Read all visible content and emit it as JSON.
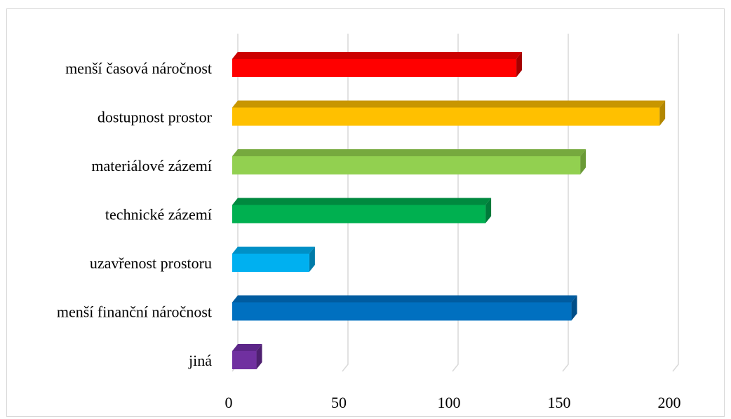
{
  "chart_data": {
    "type": "bar",
    "orientation": "horizontal",
    "style": "3d",
    "categories": [
      "menší časová náročnost",
      "dostupnost prostor",
      "materiálové zázemí",
      "technické zázemí",
      "uzavřenost prostoru",
      "menší finanční náročnost",
      "jiná"
    ],
    "values": [
      129,
      194,
      158,
      115,
      35,
      154,
      11
    ],
    "colors": [
      "#ff0000",
      "#ffc000",
      "#92d050",
      "#00b050",
      "#00b0f0",
      "#0070c0",
      "#7030a0"
    ],
    "shade_colors": [
      "#a50000",
      "#b38700",
      "#6a9a36",
      "#007a3a",
      "#007ba8",
      "#004e88",
      "#4e2070"
    ],
    "top_colors": [
      "#cc0000",
      "#c89600",
      "#76a93e",
      "#00893f",
      "#0090c6",
      "#005ca0",
      "#5c2688"
    ],
    "xlim": [
      0,
      200
    ],
    "xticks": [
      "0",
      "50",
      "100",
      "150",
      "200"
    ],
    "grid": true,
    "legend": false,
    "title": "",
    "xlabel": "",
    "ylabel": ""
  }
}
